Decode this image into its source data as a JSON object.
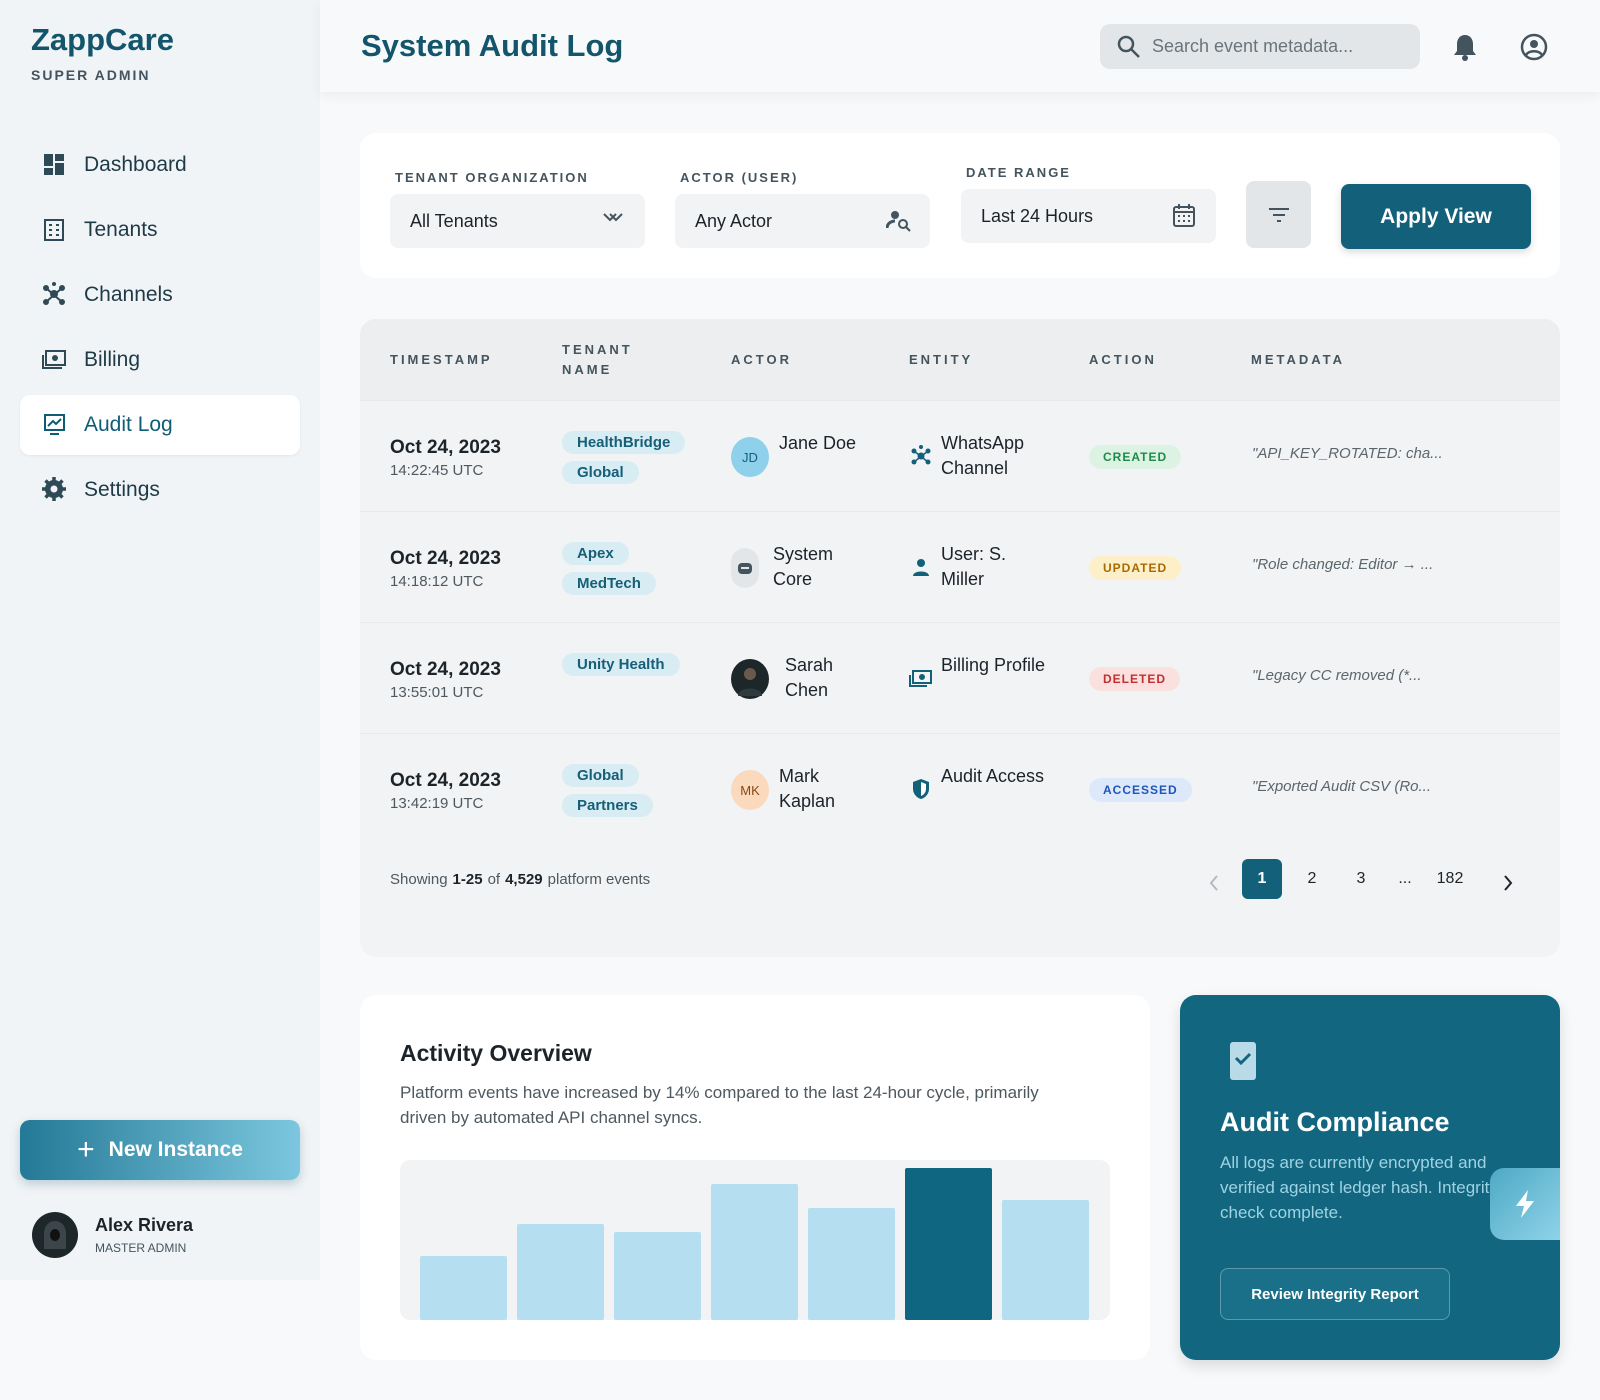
{
  "sidebar": {
    "brand": "ZappCare",
    "role": "SUPER ADMIN",
    "nav": [
      "Dashboard",
      "Tenants",
      "Channels",
      "Billing",
      "Audit Log",
      "Settings"
    ],
    "active_index": 4,
    "new_instance": "New Instance",
    "user": {
      "name": "Alex Rivera",
      "role": "MASTER ADMIN"
    }
  },
  "header": {
    "title": "System Audit Log",
    "search_placeholder": "Search event metadata..."
  },
  "filters": {
    "fields": [
      {
        "label": "TENANT ORGANIZATION",
        "value": "All Tenants"
      },
      {
        "label": "ACTOR (USER)",
        "value": "Any Actor"
      },
      {
        "label": "DATE RANGE",
        "value": "Last 24 Hours"
      }
    ],
    "apply": "Apply View"
  },
  "table": {
    "columns": [
      "TIMESTAMP",
      "TENANT NAME",
      "ACTOR",
      "ENTITY",
      "ACTION",
      "METADATA"
    ],
    "rows": [
      {
        "date": "Oct 24, 2023",
        "time": "14:22:45 UTC",
        "tenant": "HealthBridge Global",
        "actor_initials": "JD",
        "actor": "Jane Doe",
        "entity": "WhatsApp Channel",
        "action": "CREATED",
        "badge_color": "#1f8a4c",
        "badge_bg": "#dcf3e4",
        "metadata": "\"API_KEY_ROTATED: cha..."
      },
      {
        "date": "Oct 24, 2023",
        "time": "14:18:12 UTC",
        "tenant": "Apex MedTech",
        "actor_initials": null,
        "actor": "System Core",
        "entity": "User: S. Miller",
        "action": "UPDATED",
        "badge_color": "#a86a00",
        "badge_bg": "#fdf0c8",
        "metadata": "\"Role changed: Editor → ..."
      },
      {
        "date": "Oct 24, 2023",
        "time": "13:55:01 UTC",
        "tenant": "Unity Health",
        "actor_initials": null,
        "actor": "Sarah Chen",
        "entity": "Billing Profile",
        "action": "DELETED",
        "badge_color": "#c22f2f",
        "badge_bg": "#fbe0e0",
        "metadata": "\"Legacy CC removed (*..."
      },
      {
        "date": "Oct 24, 2023",
        "time": "13:42:19 UTC",
        "tenant": "Global Partners",
        "actor_initials": "MK",
        "actor": "Mark Kaplan",
        "entity": "Audit Access",
        "action": "ACCESSED",
        "badge_color": "#1e56b8",
        "badge_bg": "#dde9fb",
        "metadata": "\"Exported Audit CSV (Ro..."
      }
    ],
    "footer": {
      "showing": "Showing",
      "range": "1-25",
      "of": "of",
      "total": "4,529",
      "suffix": "platform events"
    },
    "pages": [
      "1",
      "2",
      "3",
      "...",
      "182"
    ],
    "current_page_index": 0
  },
  "activity": {
    "title": "Activity Overview",
    "text": "Platform events have increased by 14% compared to the last 24-hour cycle, primarily driven by automated API channel syncs.",
    "chart": {
      "type": "bar",
      "values": [
        40,
        60,
        55,
        85,
        70,
        95,
        75
      ],
      "ylim": [
        0,
        100
      ],
      "highlight_index": 5,
      "color": "#b5def0",
      "highlight_color": "#0f6680"
    }
  },
  "compliance": {
    "title": "Audit Compliance",
    "text": "All logs are currently encrypted and verified against ledger hash. Integrity check complete.",
    "button": "Review Integrity Report"
  }
}
